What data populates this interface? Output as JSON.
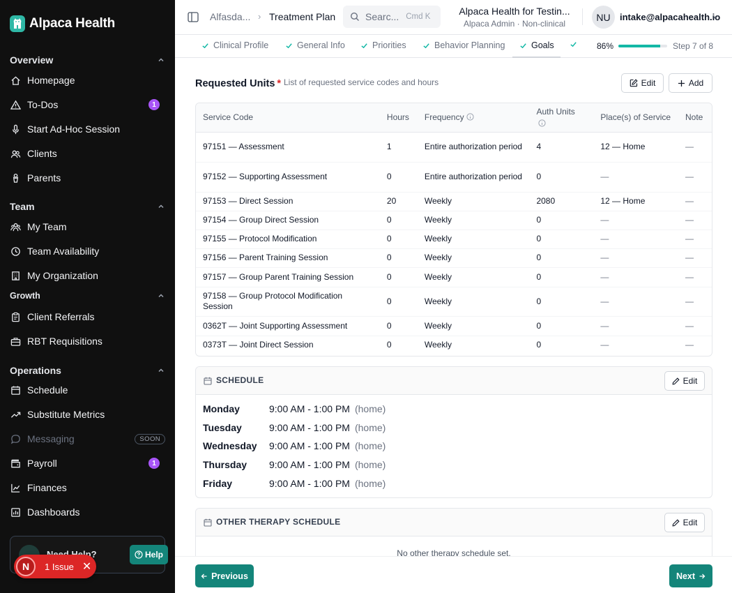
{
  "brand": {
    "name": "Alpaca Health",
    "accent": "#2fb8a6"
  },
  "sidebar": {
    "overview": {
      "heading": "Overview",
      "items": [
        {
          "label": "Homepage",
          "icon": "home-icon"
        },
        {
          "label": "To-Dos",
          "icon": "warning-triangle-icon",
          "badge": "1"
        },
        {
          "label": "Start Ad-Hoc Session",
          "icon": "microphone-icon"
        },
        {
          "label": "Clients",
          "icon": "users-icon"
        },
        {
          "label": "Parents",
          "icon": "pacifier-icon"
        }
      ]
    },
    "team": {
      "heading": "Team",
      "items": [
        {
          "label": "My Team",
          "icon": "team-icon"
        },
        {
          "label": "Team Availability",
          "icon": "clock-icon"
        },
        {
          "label": "My Organization",
          "icon": "building-icon"
        }
      ]
    },
    "growth": {
      "heading": "Growth",
      "items": [
        {
          "label": "Client Referrals",
          "icon": "clipboard-icon"
        },
        {
          "label": "RBT Requisitions",
          "icon": "briefcase-icon"
        }
      ]
    },
    "operations": {
      "heading": "Operations",
      "items": [
        {
          "label": "Schedule",
          "icon": "calendar-icon"
        },
        {
          "label": "Substitute Metrics",
          "icon": "trend-up-icon"
        },
        {
          "label": "Messaging",
          "icon": "chat-bubble-icon",
          "tag": "SOON"
        },
        {
          "label": "Payroll",
          "icon": "wallet-icon",
          "badge": "1"
        },
        {
          "label": "Finances",
          "icon": "line-chart-icon"
        },
        {
          "label": "Dashboards",
          "icon": "dashboard-icon"
        }
      ]
    },
    "help": {
      "title": "Need Help?",
      "button": "Help"
    },
    "issue": {
      "avatar": "N",
      "text": "1 Issue"
    }
  },
  "topbar": {
    "crumb_parent": "Alfasda...",
    "crumb_current": "Treatment Plan",
    "search_placeholder": "Searc...",
    "search_shortcut": "Cmd K",
    "org_name": "Alpaca Health for Testin...",
    "org_role": "Alpaca Admin · Non-clinical",
    "user_initials": "NU",
    "user_email": "intake@alpacahealth.io"
  },
  "stepper": {
    "steps": [
      "Clinical Profile",
      "General Info",
      "Priorities",
      "Behavior Planning",
      "Goals"
    ],
    "percent_label": "86%",
    "progress": 0.86,
    "step_label": "Step 7 of 8"
  },
  "requested_units": {
    "title": "Requested Units",
    "required_mark": "*",
    "description": "List of requested service codes and hours",
    "edit_label": "Edit",
    "add_label": "Add",
    "headers": {
      "code": "Service Code",
      "hours": "Hours",
      "frequency": "Frequency",
      "auth": "Auth Units",
      "place": "Place(s) of Service",
      "note": "Note"
    },
    "rows": [
      {
        "code": "97151 — Assessment",
        "hours": "1",
        "frequency": "Entire authorization period",
        "auth": "4",
        "place": "12 — Home",
        "note": "—"
      },
      {
        "code": "97152 — Supporting Assessment",
        "hours": "0",
        "frequency": "Entire authorization period",
        "auth": "0",
        "place": "—",
        "note": "—"
      },
      {
        "code": "97153 — Direct Session",
        "hours": "20",
        "frequency": "Weekly",
        "auth": "2080",
        "place": "12 — Home",
        "note": "—"
      },
      {
        "code": "97154 — Group Direct Session",
        "hours": "0",
        "frequency": "Weekly",
        "auth": "0",
        "place": "—",
        "note": "—"
      },
      {
        "code": "97155 — Protocol Modification",
        "hours": "0",
        "frequency": "Weekly",
        "auth": "0",
        "place": "—",
        "note": "—"
      },
      {
        "code": "97156 — Parent Training Session",
        "hours": "0",
        "frequency": "Weekly",
        "auth": "0",
        "place": "—",
        "note": "—"
      },
      {
        "code": "97157 — Group Parent Training Session",
        "hours": "0",
        "frequency": "Weekly",
        "auth": "0",
        "place": "—",
        "note": "—"
      },
      {
        "code": "97158 — Group Protocol Modification Session",
        "hours": "0",
        "frequency": "Weekly",
        "auth": "0",
        "place": "—",
        "note": "—"
      },
      {
        "code": "0362T — Joint Supporting Assessment",
        "hours": "0",
        "frequency": "Weekly",
        "auth": "0",
        "place": "—",
        "note": "—"
      },
      {
        "code": "0373T — Joint Direct Session",
        "hours": "0",
        "frequency": "Weekly",
        "auth": "0",
        "place": "—",
        "note": "—"
      }
    ]
  },
  "schedule": {
    "title": "SCHEDULE",
    "edit_label": "Edit",
    "days": [
      {
        "day": "Monday",
        "time": "9:00 AM - 1:00 PM",
        "location": "(home)"
      },
      {
        "day": "Tuesday",
        "time": "9:00 AM - 1:00 PM",
        "location": "(home)"
      },
      {
        "day": "Wednesday",
        "time": "9:00 AM - 1:00 PM",
        "location": "(home)"
      },
      {
        "day": "Thursday",
        "time": "9:00 AM - 1:00 PM",
        "location": "(home)"
      },
      {
        "day": "Friday",
        "time": "9:00 AM - 1:00 PM",
        "location": "(home)"
      }
    ]
  },
  "other_therapy": {
    "title": "OTHER THERAPY SCHEDULE",
    "edit_label": "Edit",
    "empty_message": "No other therapy schedule set."
  },
  "footer": {
    "previous_label": "Previous",
    "next_label": "Next"
  }
}
